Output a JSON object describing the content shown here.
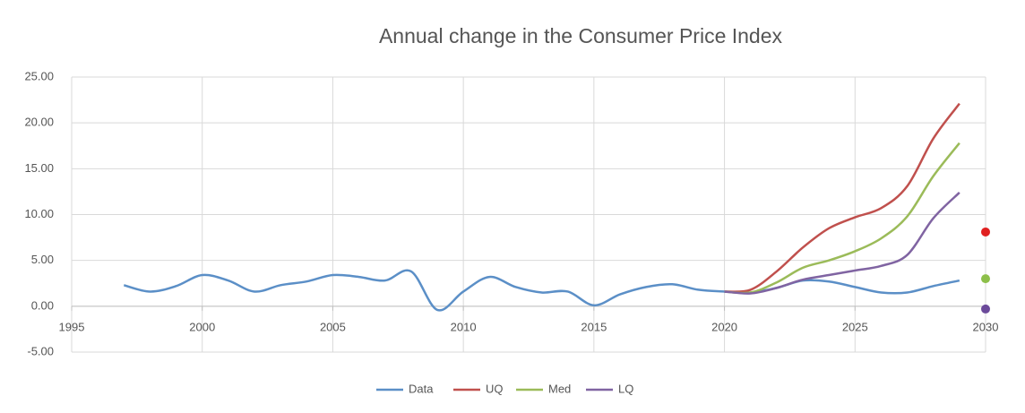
{
  "chart_data": {
    "type": "line",
    "title": "Annual change in the Consumer Price Index",
    "xlim": [
      1995,
      2030
    ],
    "xticks": [
      1995,
      2000,
      2005,
      2010,
      2015,
      2020,
      2025,
      2030
    ],
    "ylim": [
      -5,
      25
    ],
    "yticks": [
      {
        "value": -5,
        "label": "-5.00"
      },
      {
        "value": 0,
        "label": "0.00"
      },
      {
        "value": 5,
        "label": "5.00"
      },
      {
        "value": 10,
        "label": "10.00"
      },
      {
        "value": 15,
        "label": "15.00"
      },
      {
        "value": 20,
        "label": "20.00"
      },
      {
        "value": 25,
        "label": "25.00"
      }
    ],
    "grid": true,
    "legend": "bottom",
    "series": [
      {
        "name": "Data",
        "color": "#5b8fc7",
        "x": [
          1997,
          1998,
          1999,
          2000,
          2001,
          2002,
          2003,
          2004,
          2005,
          2006,
          2007,
          2008,
          2009,
          2010,
          2011,
          2012,
          2013,
          2014,
          2015,
          2016,
          2017,
          2018,
          2019,
          2020,
          2021,
          2022,
          2023,
          2024,
          2025,
          2026,
          2027,
          2028,
          2029
        ],
        "values": [
          2.3,
          1.6,
          2.2,
          3.4,
          2.8,
          1.6,
          2.3,
          2.7,
          3.4,
          3.2,
          2.8,
          3.8,
          -0.4,
          1.6,
          3.2,
          2.1,
          1.5,
          1.6,
          0.1,
          1.3,
          2.1,
          2.4,
          1.8,
          1.6,
          1.5,
          2.0,
          2.8,
          2.7,
          2.1,
          1.5,
          1.5,
          2.2,
          2.8
        ]
      },
      {
        "name": "UQ",
        "color": "#c0504d",
        "x": [
          2020,
          2021,
          2022,
          2023,
          2024,
          2025,
          2026,
          2027,
          2028,
          2029
        ],
        "values": [
          1.6,
          1.8,
          3.8,
          6.4,
          8.5,
          9.7,
          10.7,
          13.1,
          18.3,
          22.1
        ]
      },
      {
        "name": "Med",
        "color": "#9bbb59",
        "x": [
          2020,
          2021,
          2022,
          2023,
          2024,
          2025,
          2026,
          2027,
          2028,
          2029
        ],
        "values": [
          1.6,
          1.5,
          2.6,
          4.2,
          5.0,
          6.0,
          7.4,
          9.8,
          14.2,
          17.8
        ]
      },
      {
        "name": "LQ",
        "color": "#8064a2",
        "x": [
          2020,
          2021,
          2022,
          2023,
          2024,
          2025,
          2026,
          2027,
          2028,
          2029
        ],
        "values": [
          1.6,
          1.4,
          2.0,
          2.9,
          3.4,
          3.9,
          4.4,
          5.6,
          9.6,
          12.4
        ]
      }
    ],
    "points": [
      {
        "x": 2030,
        "value": 8.1,
        "color": "#e02020"
      },
      {
        "x": 2030,
        "value": 3.0,
        "color": "#8dbf4a"
      },
      {
        "x": 2030,
        "value": -0.3,
        "color": "#6b4a9a"
      }
    ]
  }
}
